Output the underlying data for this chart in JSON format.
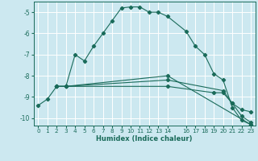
{
  "title": "",
  "xlabel": "Humidex (Indice chaleur)",
  "bg_color": "#cce8f0",
  "line_color": "#1a6b5a",
  "grid_color": "#ffffff",
  "xlim": [
    -0.5,
    23.5
  ],
  "ylim": [
    -10.35,
    -4.5
  ],
  "xticks": [
    0,
    1,
    2,
    3,
    4,
    5,
    6,
    7,
    8,
    9,
    10,
    11,
    12,
    13,
    14,
    16,
    17,
    18,
    19,
    20,
    21,
    22,
    23
  ],
  "yticks": [
    -10,
    -9,
    -8,
    -7,
    -6,
    -5
  ],
  "series": [
    {
      "x": [
        0,
        1,
        2,
        3,
        4,
        5,
        6,
        7,
        8,
        9,
        10,
        11,
        12,
        13,
        14,
        16,
        17,
        18,
        19,
        20,
        21,
        22,
        23
      ],
      "y": [
        -9.4,
        -9.1,
        -8.5,
        -8.5,
        -7.0,
        -7.3,
        -6.6,
        -6.0,
        -5.4,
        -4.8,
        -4.75,
        -4.75,
        -5.0,
        -5.0,
        -5.2,
        -5.9,
        -6.6,
        -7.0,
        -7.9,
        -8.2,
        -9.5,
        -10.1,
        -10.3
      ]
    },
    {
      "x": [
        2,
        3,
        14,
        23
      ],
      "y": [
        -8.5,
        -8.5,
        -8.0,
        -10.3
      ]
    },
    {
      "x": [
        2,
        3,
        14,
        20,
        21,
        22,
        23
      ],
      "y": [
        -8.5,
        -8.5,
        -8.2,
        -8.7,
        -9.3,
        -9.9,
        -10.2
      ]
    },
    {
      "x": [
        2,
        3,
        14,
        19,
        20,
        21,
        22,
        23
      ],
      "y": [
        -8.5,
        -8.5,
        -8.5,
        -8.8,
        -8.8,
        -9.3,
        -9.6,
        -9.7
      ]
    }
  ],
  "xlabel_fontsize": 6.0,
  "tick_fontsize": 5.2,
  "marker_size": 2.2,
  "linewidth": 0.8
}
